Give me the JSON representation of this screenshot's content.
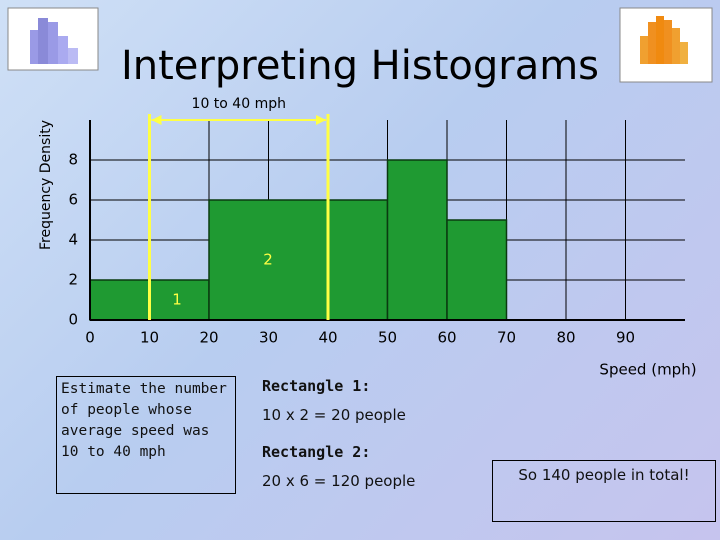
{
  "chart_data": {
    "type": "histogram",
    "title": "Interpreting Histograms",
    "y_label": "Frequency Density",
    "x_label": "Speed (mph)",
    "bins": [
      0,
      20,
      50,
      60,
      70
    ],
    "counts": [
      2,
      6,
      8,
      5
    ],
    "color": "#1f9a32",
    "xlim": [
      0,
      100
    ],
    "xticks": [
      0,
      10,
      20,
      30,
      40,
      50,
      60,
      70,
      80,
      90
    ],
    "ylim": [
      0,
      10
    ],
    "yticks": [
      0,
      2,
      4,
      6,
      8
    ],
    "grid": true,
    "highlight": {
      "label": "10 to 40 mph",
      "range": [
        10,
        40
      ],
      "color": "#ffff44"
    },
    "rectangle_labels": [
      "1",
      "2"
    ]
  },
  "question": "Estimate the number of people whose average speed was 10 to 40 mph",
  "working": [
    {
      "heading": "Rectangle 1:",
      "line": "10 x 2 = 20 people"
    },
    {
      "heading": "Rectangle 2:",
      "line": "20 x 6 = 120 people"
    }
  ],
  "conclusion": "So 140 people in total!"
}
